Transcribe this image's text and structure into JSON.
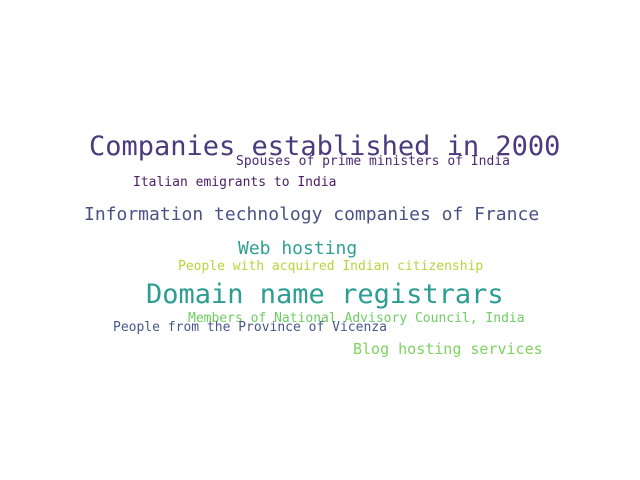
{
  "words": [
    {
      "text": "Companies established in 2000",
      "color": "#4a3a7e"
    },
    {
      "text": "Spouses of prime ministers of India",
      "color": "#4a2a72"
    },
    {
      "text": "Italian emigrants to India",
      "color": "#4a1e66"
    },
    {
      "text": "Information technology companies of France",
      "color": "#4a5286"
    },
    {
      "text": "Web hosting",
      "color": "#2fa192"
    },
    {
      "text": "People with acquired Indian citizenship",
      "color": "#b6d63c"
    },
    {
      "text": "Domain name registrars",
      "color": "#2c9d92"
    },
    {
      "text": "Members of National Advisory Council, India",
      "color": "#6fcd63"
    },
    {
      "text": "People from the Province of Vicenza",
      "color": "#47578a"
    },
    {
      "text": "Blog hosting services",
      "color": "#7fd35f"
    }
  ]
}
